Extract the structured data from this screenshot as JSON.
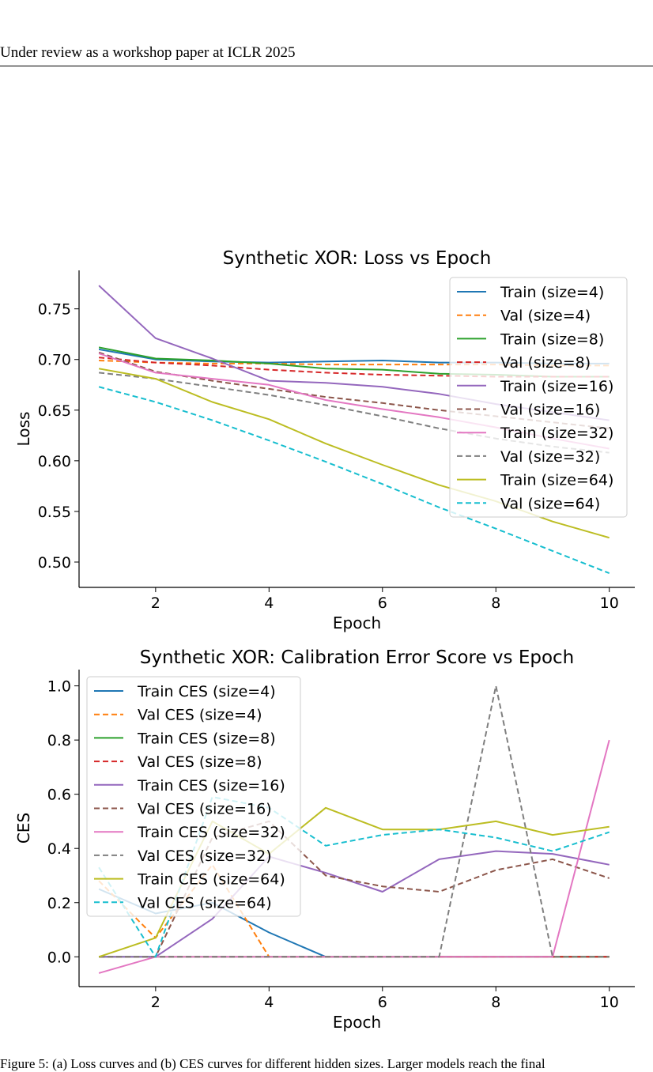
{
  "page": {
    "header": "Under review as a workshop paper at ICLR 2025",
    "caption": "Figure 5: (a) Loss curves and (b) CES curves for different hidden sizes. Larger models reach the final"
  },
  "chart_data": [
    {
      "type": "line",
      "title": "Synthetic XOR: Loss vs Epoch",
      "xlabel": "Epoch",
      "ylabel": "Loss",
      "xlim": [
        0.65,
        10.45
      ],
      "ylim": [
        0.475,
        0.788
      ],
      "xticks": [
        2,
        4,
        6,
        8,
        10
      ],
      "yticks": [
        0.5,
        0.55,
        0.6,
        0.65,
        0.7,
        0.75
      ],
      "ytick_labels": [
        "0.50",
        "0.55",
        "0.60",
        "0.65",
        "0.70",
        "0.75"
      ],
      "legend_position": "upper-right",
      "grid": false,
      "x": [
        1,
        2,
        3,
        4,
        5,
        6,
        7,
        8,
        9,
        10
      ],
      "series": [
        {
          "name": "Train (size=4)",
          "color": "#1f77b4",
          "dash": "solid",
          "values": [
            0.71,
            0.7,
            0.698,
            0.697,
            0.698,
            0.699,
            0.697,
            0.697,
            0.696,
            0.696
          ]
        },
        {
          "name": "Val (size=4)",
          "color": "#ff7f0e",
          "dash": "dashed",
          "values": [
            0.699,
            0.697,
            0.696,
            0.696,
            0.695,
            0.695,
            0.695,
            0.695,
            0.694,
            0.694
          ]
        },
        {
          "name": "Train (size=8)",
          "color": "#2ca02c",
          "dash": "solid",
          "values": [
            0.712,
            0.701,
            0.699,
            0.696,
            0.691,
            0.69,
            0.686,
            0.685,
            0.683,
            0.683
          ]
        },
        {
          "name": "Val (size=8)",
          "color": "#d62728",
          "dash": "dashed",
          "values": [
            0.702,
            0.697,
            0.694,
            0.69,
            0.687,
            0.685,
            0.684,
            0.683,
            0.683,
            0.683
          ]
        },
        {
          "name": "Train (size=16)",
          "color": "#9467bd",
          "dash": "solid",
          "values": [
            0.773,
            0.721,
            0.701,
            0.679,
            0.677,
            0.673,
            0.666,
            0.656,
            0.648,
            0.64
          ]
        },
        {
          "name": "Val (size=16)",
          "color": "#8c564b",
          "dash": "dashed",
          "values": [
            0.707,
            0.688,
            0.679,
            0.671,
            0.663,
            0.657,
            0.65,
            0.644,
            0.638,
            0.632
          ]
        },
        {
          "name": "Train (size=32)",
          "color": "#e377c2",
          "dash": "solid",
          "values": [
            0.706,
            0.687,
            0.681,
            0.675,
            0.66,
            0.651,
            0.643,
            0.633,
            0.622,
            0.612
          ]
        },
        {
          "name": "Val (size=32)",
          "color": "#7f7f7f",
          "dash": "dashed",
          "values": [
            0.687,
            0.681,
            0.673,
            0.665,
            0.655,
            0.644,
            0.632,
            0.622,
            0.614,
            0.608
          ]
        },
        {
          "name": "Train (size=64)",
          "color": "#bcbd22",
          "dash": "solid",
          "values": [
            0.691,
            0.681,
            0.658,
            0.641,
            0.617,
            0.596,
            0.576,
            0.56,
            0.54,
            0.524
          ]
        },
        {
          "name": "Val (size=64)",
          "color": "#17becf",
          "dash": "dashed",
          "values": [
            0.673,
            0.658,
            0.64,
            0.62,
            0.599,
            0.577,
            0.554,
            0.533,
            0.511,
            0.489
          ]
        }
      ]
    },
    {
      "type": "line",
      "title": "Synthetic XOR: Calibration Error Score vs Epoch",
      "xlabel": "Epoch",
      "ylabel": "CES",
      "xlim": [
        0.65,
        10.45
      ],
      "ylim": [
        -0.11,
        1.06
      ],
      "xticks": [
        2,
        4,
        6,
        8,
        10
      ],
      "yticks": [
        0.0,
        0.2,
        0.4,
        0.6,
        0.8,
        1.0
      ],
      "ytick_labels": [
        "0.0",
        "0.2",
        "0.4",
        "0.6",
        "0.8",
        "1.0"
      ],
      "legend_position": "upper-left",
      "grid": false,
      "x": [
        1,
        2,
        3,
        4,
        5,
        6,
        7,
        8,
        9,
        10
      ],
      "series": [
        {
          "name": "Train CES (size=4)",
          "color": "#1f77b4",
          "dash": "solid",
          "values": [
            0.25,
            0.16,
            0.2,
            0.09,
            0.0,
            0.0,
            0.0,
            0.0,
            0.0,
            0.0
          ]
        },
        {
          "name": "Val CES (size=4)",
          "color": "#ff7f0e",
          "dash": "dashed",
          "values": [
            0.28,
            0.07,
            0.34,
            0.0,
            0.0,
            0.0,
            0.0,
            0.0,
            0.0,
            0.0
          ]
        },
        {
          "name": "Train CES (size=8)",
          "color": "#2ca02c",
          "dash": "solid",
          "values": [
            0.0,
            0.0,
            0.0,
            0.0,
            0.0,
            0.0,
            0.0,
            0.0,
            0.0,
            0.0
          ]
        },
        {
          "name": "Val CES (size=8)",
          "color": "#d62728",
          "dash": "dashed",
          "values": [
            0.0,
            0.0,
            0.0,
            0.0,
            0.0,
            0.0,
            0.0,
            0.0,
            0.0,
            0.0
          ]
        },
        {
          "name": "Train CES (size=16)",
          "color": "#9467bd",
          "dash": "solid",
          "values": [
            0.0,
            0.0,
            0.14,
            0.37,
            0.31,
            0.24,
            0.36,
            0.39,
            0.38,
            0.34
          ]
        },
        {
          "name": "Val CES (size=16)",
          "color": "#8c564b",
          "dash": "dashed",
          "values": [
            0.0,
            0.0,
            0.44,
            0.5,
            0.3,
            0.26,
            0.24,
            0.32,
            0.36,
            0.29
          ]
        },
        {
          "name": "Train CES (size=32)",
          "color": "#e377c2",
          "dash": "solid",
          "values": [
            -0.06,
            0.0,
            0.0,
            0.0,
            0.0,
            0.0,
            0.0,
            0.0,
            0.0,
            0.8
          ]
        },
        {
          "name": "Val CES (size=32)",
          "color": "#7f7f7f",
          "dash": "dashed",
          "values": [
            0.0,
            0.0,
            0.0,
            0.0,
            0.0,
            0.0,
            0.0,
            1.0,
            0.0,
            0.0
          ]
        },
        {
          "name": "Train CES (size=64)",
          "color": "#bcbd22",
          "dash": "solid",
          "values": [
            0.0,
            0.07,
            0.5,
            0.38,
            0.55,
            0.47,
            0.47,
            0.5,
            0.45,
            0.48
          ]
        },
        {
          "name": "Val CES (size=64)",
          "color": "#17becf",
          "dash": "dashed",
          "values": [
            0.33,
            0.0,
            0.59,
            0.55,
            0.41,
            0.45,
            0.47,
            0.44,
            0.39,
            0.46
          ]
        }
      ]
    }
  ]
}
